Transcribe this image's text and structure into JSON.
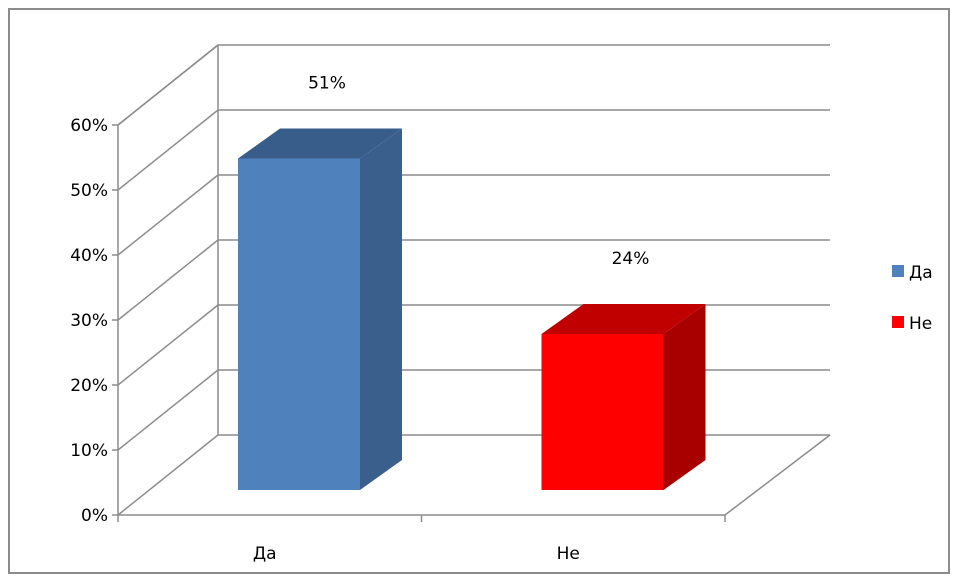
{
  "chart_data": {
    "type": "bar",
    "categories": [
      "Да",
      "Не"
    ],
    "values": [
      51,
      24
    ],
    "value_unit": "%",
    "data_labels": [
      "51%",
      "24%"
    ],
    "colors": [
      "#4f81bd",
      "#ff0000"
    ],
    "ylim": [
      0,
      60
    ],
    "y_ticks": [
      "0%",
      "10%",
      "20%",
      "30%",
      "40%",
      "50%",
      "60%"
    ],
    "grid": true,
    "style": "3d-column",
    "legend": {
      "position": "right",
      "entries": [
        {
          "label": "Да",
          "color": "#4f81bd"
        },
        {
          "label": "Не",
          "color": "#ff0000"
        }
      ]
    }
  }
}
